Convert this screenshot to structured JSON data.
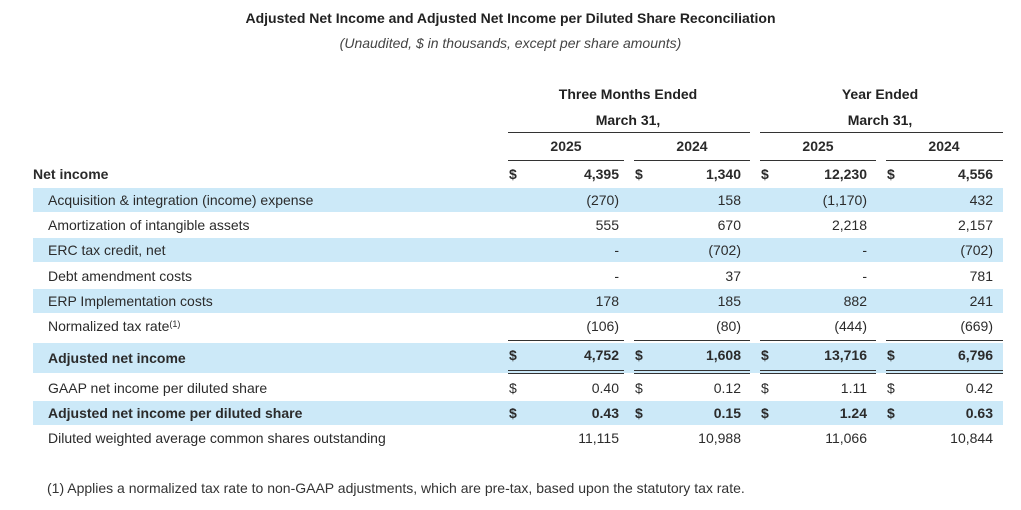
{
  "title": "Adjusted Net Income and Adjusted Net Income per Diluted Share Reconciliation",
  "subtitle": "(Unaudited, $ in thousands, except per share amounts)",
  "groups": [
    {
      "line1": "Three Months Ended",
      "line2": "March 31,"
    },
    {
      "line1": "Year Ended",
      "line2": "March 31,"
    }
  ],
  "years": [
    "2025",
    "2024",
    "2025",
    "2024"
  ],
  "currency_symbol": "$",
  "rows": [
    {
      "label": "Net income",
      "values": [
        "4,395",
        "1,340",
        "12,230",
        "4,556"
      ]
    },
    {
      "label": "Acquisition & integration (income) expense",
      "values": [
        "(270)",
        "158",
        "(1,170)",
        "432"
      ]
    },
    {
      "label": "Amortization of intangible assets",
      "values": [
        "555",
        "670",
        "2,218",
        "2,157"
      ]
    },
    {
      "label": "ERC tax credit, net",
      "values": [
        "-",
        "(702)",
        "-",
        "(702)"
      ]
    },
    {
      "label": "Debt amendment costs",
      "values": [
        "-",
        "37",
        "-",
        "781"
      ]
    },
    {
      "label": "ERP Implementation costs",
      "values": [
        "178",
        "185",
        "882",
        "241"
      ]
    },
    {
      "label": "Normalized tax rate",
      "label_sup": "(1)",
      "values": [
        "(106)",
        "(80)",
        "(444)",
        "(669)"
      ]
    },
    {
      "label": "Adjusted net income",
      "values": [
        "4,752",
        "1,608",
        "13,716",
        "6,796"
      ]
    },
    {
      "label": "GAAP net income per diluted share",
      "values": [
        "0.40",
        "0.12",
        "1.11",
        "0.42"
      ]
    },
    {
      "label": "Adjusted net income per diluted share",
      "values": [
        "0.43",
        "0.15",
        "1.24",
        "0.63"
      ]
    },
    {
      "label": "Diluted weighted average common shares outstanding",
      "values": [
        "11,115",
        "10,988",
        "11,066",
        "10,844"
      ]
    }
  ],
  "footnote": "(1) Applies a normalized tax rate to non-GAAP adjustments, which are pre-tax, based upon the statutory tax rate.",
  "colors": {
    "shade": "#cce9f8",
    "text": "#2b2b2b"
  }
}
